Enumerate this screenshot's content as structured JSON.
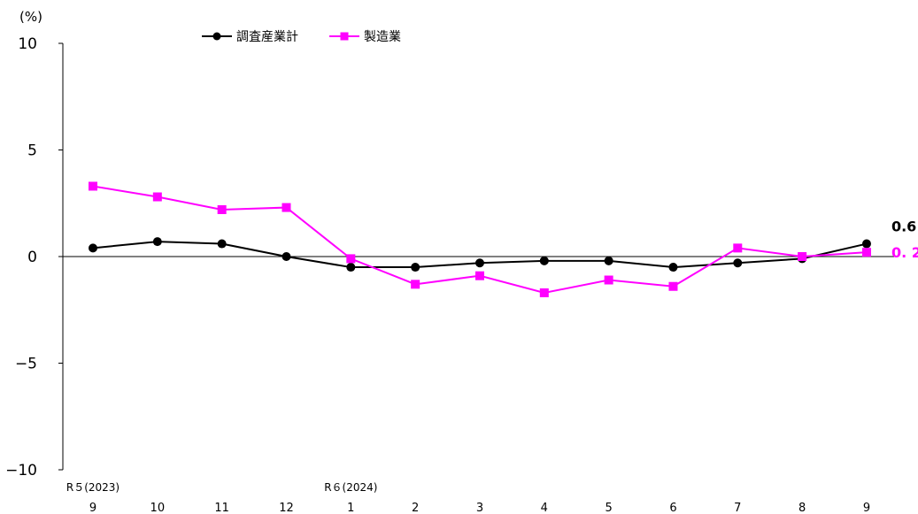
{
  "chart_data": {
    "type": "line",
    "unit_label": "(%)",
    "ylim": [
      -10,
      10
    ],
    "y_ticks": [
      10,
      5,
      0,
      -5,
      -10
    ],
    "y_tick_labels": [
      "10",
      "5",
      "0",
      "−5",
      "−10"
    ],
    "categories": [
      "9",
      "10",
      "11",
      "12",
      "1",
      "2",
      "3",
      "4",
      "5",
      "6",
      "7",
      "8",
      "9"
    ],
    "era_labels": [
      {
        "index": 0,
        "text": "R５(2023)"
      },
      {
        "index": 4,
        "text": "R６(2024)"
      }
    ],
    "zero_line": true,
    "legend_position": "top-center",
    "series": [
      {
        "name": "調査産業計",
        "color": "#000000",
        "marker": "circle",
        "values": [
          0.4,
          0.7,
          0.6,
          0.0,
          -0.5,
          -0.5,
          -0.3,
          -0.2,
          -0.2,
          -0.5,
          -0.3,
          -0.1,
          0.6
        ],
        "end_label": "0.6"
      },
      {
        "name": "製造業",
        "color": "#ff00ff",
        "marker": "square",
        "values": [
          3.3,
          2.8,
          2.2,
          2.3,
          -0.1,
          -1.3,
          -0.9,
          -1.7,
          -1.1,
          -1.4,
          0.4,
          0.0,
          0.2
        ],
        "end_label": "0. 2"
      }
    ]
  }
}
